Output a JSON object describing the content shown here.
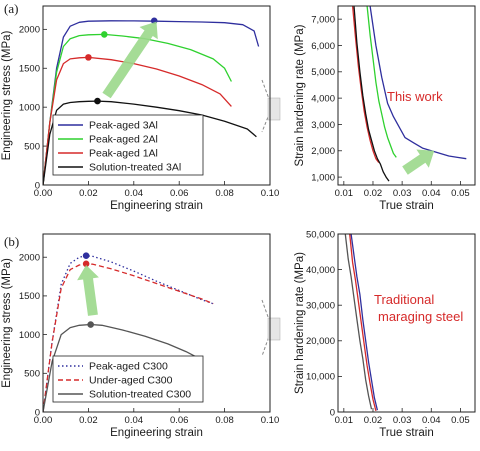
{
  "panel_labels": [
    "(a)",
    "(b)"
  ],
  "chart_data": [
    {
      "type": "line",
      "title": "",
      "xlabel": "Engineering strain",
      "ylabel": "Engineering stress (MPa)",
      "xlim": [
        0,
        0.1
      ],
      "ylim": [
        0,
        2300
      ],
      "xticks": [
        "0.00",
        "0.02",
        "0.04",
        "0.06",
        "0.08",
        "0.10"
      ],
      "yticks": [
        "0",
        "500",
        "1000",
        "1500",
        "2000"
      ],
      "legend_position": "lower-left",
      "series": [
        {
          "name": "Peak-aged 3Al",
          "color": "#2f2f9e",
          "style": "solid",
          "x": [
            0,
            0.003,
            0.006,
            0.009,
            0.012,
            0.016,
            0.02,
            0.03,
            0.04,
            0.05,
            0.06,
            0.07,
            0.08,
            0.088,
            0.093,
            0.095
          ],
          "y": [
            0,
            800,
            1500,
            1900,
            2040,
            2090,
            2105,
            2110,
            2108,
            2105,
            2100,
            2095,
            2085,
            2060,
            1980,
            1780
          ],
          "marker": {
            "x": 0.049,
            "y": 2110
          }
        },
        {
          "name": "Peak-aged 2Al",
          "color": "#2fd12f",
          "style": "solid",
          "x": [
            0,
            0.003,
            0.006,
            0.009,
            0.012,
            0.016,
            0.02,
            0.027,
            0.035,
            0.045,
            0.055,
            0.065,
            0.075,
            0.08,
            0.083
          ],
          "y": [
            0,
            800,
            1450,
            1780,
            1880,
            1920,
            1930,
            1935,
            1915,
            1880,
            1820,
            1740,
            1620,
            1500,
            1330
          ],
          "marker": {
            "x": 0.027,
            "y": 1935
          }
        },
        {
          "name": "Peak-aged 1Al",
          "color": "#d62a2a",
          "style": "solid",
          "x": [
            0,
            0.003,
            0.006,
            0.009,
            0.012,
            0.016,
            0.02,
            0.03,
            0.04,
            0.05,
            0.06,
            0.07,
            0.078,
            0.083
          ],
          "y": [
            0,
            800,
            1350,
            1560,
            1620,
            1635,
            1640,
            1610,
            1560,
            1490,
            1400,
            1290,
            1170,
            1010
          ],
          "marker": {
            "x": 0.02,
            "y": 1640
          }
        },
        {
          "name": "Solution-treated 3Al",
          "color": "#111111",
          "style": "solid",
          "x": [
            0,
            0.003,
            0.006,
            0.009,
            0.012,
            0.016,
            0.02,
            0.024,
            0.03,
            0.04,
            0.05,
            0.06,
            0.07,
            0.08,
            0.09,
            0.094
          ],
          "y": [
            0,
            650,
            960,
            1040,
            1060,
            1070,
            1075,
            1078,
            1070,
            1040,
            1000,
            955,
            900,
            820,
            720,
            620
          ],
          "marker": {
            "x": 0.024,
            "y": 1078
          }
        }
      ]
    },
    {
      "type": "line",
      "title": "",
      "xlabel": "True strain",
      "ylabel": "Strain hardening rate (MPa)",
      "xlim": [
        0.008,
        0.055
      ],
      "ylim": [
        700,
        7500
      ],
      "xticks": [
        "0.01",
        "0.02",
        "0.03",
        "0.04",
        "0.05"
      ],
      "yticks": [
        "1,000",
        "2,000",
        "3,000",
        "4,000",
        "5,000",
        "6,000",
        "7,000"
      ],
      "annotation": "This work",
      "series": [
        {
          "name": "",
          "color": "#2f2f9e",
          "x": [
            0.019,
            0.021,
            0.023,
            0.025,
            0.027,
            0.029,
            0.031,
            0.034,
            0.037,
            0.04,
            0.043,
            0.046,
            0.049,
            0.052
          ],
          "y": [
            7500,
            6000,
            4800,
            3800,
            3300,
            2900,
            2500,
            2300,
            2100,
            2000,
            1900,
            1800,
            1750,
            1700
          ]
        },
        {
          "name": "",
          "color": "#2fd12f",
          "x": [
            0.018,
            0.019,
            0.02,
            0.021,
            0.022,
            0.023,
            0.024,
            0.025,
            0.026,
            0.027,
            0.028
          ],
          "y": [
            7500,
            6400,
            5500,
            4600,
            3900,
            3400,
            2900,
            2500,
            2200,
            1900,
            1750
          ]
        },
        {
          "name": "",
          "color": "#d62a2a",
          "x": [
            0.013,
            0.014,
            0.015,
            0.016,
            0.017,
            0.018,
            0.019,
            0.02,
            0.021,
            0.022
          ],
          "y": [
            7500,
            6300,
            5200,
            4300,
            3500,
            2900,
            2400,
            2000,
            1700,
            1550
          ]
        },
        {
          "name": "",
          "color": "#111111",
          "x": [
            0.0135,
            0.0145,
            0.0155,
            0.0165,
            0.0175,
            0.0185,
            0.0195,
            0.0205,
            0.0215,
            0.0225,
            0.0235,
            0.0245,
            0.0255
          ],
          "y": [
            7500,
            6100,
            5000,
            4100,
            3400,
            2800,
            2400,
            2000,
            1700,
            1500,
            1200,
            1000,
            850
          ]
        }
      ]
    },
    {
      "type": "line",
      "title": "",
      "xlabel": "Engineering strain",
      "ylabel": "Engineering stress (MPa)",
      "xlim": [
        0,
        0.1
      ],
      "ylim": [
        0,
        2300
      ],
      "xticks": [
        "0.00",
        "0.02",
        "0.04",
        "0.06",
        "0.08",
        "0.10"
      ],
      "yticks": [
        "0",
        "500",
        "1000",
        "1500",
        "2000"
      ],
      "legend_position": "lower-left",
      "series": [
        {
          "name": "Peak-aged C300",
          "color": "#2f2f9e",
          "style": "dotted",
          "x": [
            0,
            0.004,
            0.008,
            0.012,
            0.016,
            0.019,
            0.022,
            0.03,
            0.04,
            0.05,
            0.06,
            0.07,
            0.075
          ],
          "y": [
            0,
            900,
            1650,
            1920,
            2000,
            2020,
            2010,
            1940,
            1820,
            1690,
            1570,
            1450,
            1400
          ],
          "marker": {
            "x": 0.019,
            "y": 2020
          }
        },
        {
          "name": "Under-aged C300",
          "color": "#d62a2a",
          "style": "dashed",
          "x": [
            0,
            0.004,
            0.008,
            0.012,
            0.016,
            0.019,
            0.022,
            0.03,
            0.04,
            0.05,
            0.06,
            0.07,
            0.075
          ],
          "y": [
            0,
            900,
            1600,
            1840,
            1900,
            1915,
            1910,
            1850,
            1760,
            1660,
            1560,
            1460,
            1400
          ],
          "marker": {
            "x": 0.019,
            "y": 1915
          }
        },
        {
          "name": "Solution-treated C300",
          "color": "#555555",
          "style": "solid",
          "x": [
            0,
            0.004,
            0.008,
            0.012,
            0.016,
            0.021,
            0.026,
            0.035,
            0.045,
            0.055,
            0.063,
            0.067
          ],
          "y": [
            0,
            650,
            1000,
            1090,
            1120,
            1130,
            1120,
            1060,
            980,
            880,
            780,
            720
          ],
          "marker": {
            "x": 0.021,
            "y": 1130
          }
        }
      ]
    },
    {
      "type": "line",
      "title": "",
      "xlabel": "True strain",
      "ylabel": "Strain hardening rate (MPa)",
      "xlim": [
        0.008,
        0.055
      ],
      "ylim": [
        0,
        50000
      ],
      "xticks": [
        "0.01",
        "0.02",
        "0.03",
        "0.04",
        "0.05"
      ],
      "yticks": [
        "0",
        "10,000",
        "20,000",
        "30,000",
        "40,000",
        "50,000"
      ],
      "annotation": "Traditional maraging steel",
      "series": [
        {
          "name": "",
          "color": "#2f2f9e",
          "x": [
            0.0125,
            0.0135,
            0.0145,
            0.0155,
            0.0165,
            0.0175,
            0.0185,
            0.0195,
            0.0205,
            0.0215
          ],
          "y": [
            50000,
            44000,
            38000,
            33000,
            26000,
            20000,
            14000,
            9000,
            4000,
            500
          ]
        },
        {
          "name": "",
          "color": "#d62a2a",
          "x": [
            0.012,
            0.013,
            0.014,
            0.015,
            0.016,
            0.017,
            0.018,
            0.019,
            0.02,
            0.021
          ],
          "y": [
            50000,
            42000,
            37000,
            31000,
            25000,
            19000,
            13000,
            8000,
            3500,
            300
          ]
        },
        {
          "name": "",
          "color": "#555555",
          "x": [
            0.0105,
            0.0115,
            0.0125,
            0.0135,
            0.0145,
            0.0155,
            0.0165,
            0.0175,
            0.0185,
            0.0195
          ],
          "y": [
            50000,
            43000,
            38000,
            32000,
            26000,
            20000,
            15000,
            9000,
            4500,
            800
          ]
        }
      ]
    }
  ]
}
